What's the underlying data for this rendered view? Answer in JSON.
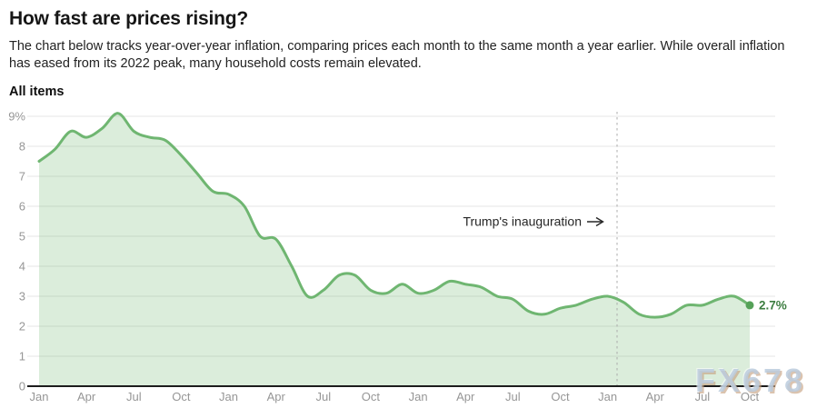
{
  "header": {
    "title": "How fast are prices rising?",
    "subtitle": "The chart below tracks year-over-year inflation, comparing prices each month to the same month a year earlier. While overall inflation has eased from its 2022 peak, many household costs remain elevated."
  },
  "watermark": {
    "text": "FX678"
  },
  "chart_data": {
    "type": "area",
    "title": "All items",
    "unit": "% year-over-year inflation",
    "x": [
      "Jan 2022",
      "Feb 2022",
      "Mar 2022",
      "Apr 2022",
      "May 2022",
      "Jun 2022",
      "Jul 2022",
      "Aug 2022",
      "Sep 2022",
      "Oct 2022",
      "Nov 2022",
      "Dec 2022",
      "Jan 2023",
      "Feb 2023",
      "Mar 2023",
      "Apr 2023",
      "May 2023",
      "Jun 2023",
      "Jul 2023",
      "Aug 2023",
      "Sep 2023",
      "Oct 2023",
      "Nov 2023",
      "Dec 2023",
      "Jan 2024",
      "Feb 2024",
      "Mar 2024",
      "Apr 2024",
      "May 2024",
      "Jun 2024",
      "Jul 2024",
      "Aug 2024",
      "Sep 2024",
      "Oct 2024",
      "Nov 2024",
      "Dec 2024",
      "Jan 2025",
      "Feb 2025",
      "Mar 2025",
      "Apr 2025",
      "May 2025",
      "Jun 2025",
      "Jul 2025",
      "Aug 2025",
      "Sep 2025",
      "Oct 2025"
    ],
    "values": [
      7.5,
      7.9,
      8.5,
      8.3,
      8.6,
      9.1,
      8.5,
      8.3,
      8.2,
      7.7,
      7.1,
      6.5,
      6.4,
      6.0,
      5.0,
      4.9,
      4.0,
      3.0,
      3.2,
      3.7,
      3.7,
      3.2,
      3.1,
      3.4,
      3.1,
      3.2,
      3.5,
      3.4,
      3.3,
      3.0,
      2.9,
      2.5,
      2.4,
      2.6,
      2.7,
      2.9,
      3.0,
      2.8,
      2.4,
      2.3,
      2.4,
      2.7,
      2.7,
      2.9,
      3.0,
      2.7
    ],
    "x_tick_labels": [
      "Jan",
      "Apr",
      "Jul",
      "Oct",
      "Jan",
      "Apr",
      "Jul",
      "Oct",
      "Jan",
      "Apr",
      "Jul",
      "Oct",
      "Jan",
      "Apr",
      "Jul",
      "Oct"
    ],
    "x_tick_every_months": 3,
    "y_ticks": [
      {
        "value": 9,
        "label": "9%"
      },
      {
        "value": 8,
        "label": "8"
      },
      {
        "value": 7,
        "label": "7"
      },
      {
        "value": 6,
        "label": "6"
      },
      {
        "value": 5,
        "label": "5"
      },
      {
        "value": 4,
        "label": "4"
      },
      {
        "value": 3,
        "label": "3"
      },
      {
        "value": 2,
        "label": "2"
      },
      {
        "value": 1,
        "label": "1"
      },
      {
        "value": 0,
        "label": "0"
      }
    ],
    "ylim": [
      0,
      9
    ],
    "grid": "horizontal",
    "legend": "none",
    "end_point_label": "2.7%",
    "annotation": {
      "text": "Trump's inauguration",
      "arrow": "right",
      "position": "Jan 20, 2025",
      "month_index": 36.6
    },
    "colors": {
      "line": "#6fb671",
      "fill": "#7abc7a",
      "fill_opacity": 0.27,
      "dot": "#55a158",
      "end_label": "#3c7d40",
      "grid": "#e4e4e4",
      "baseline": "#1c1c1c",
      "axis_text": "#969696",
      "dashed_line": "#ababab",
      "annotation_text": "#262626"
    }
  }
}
